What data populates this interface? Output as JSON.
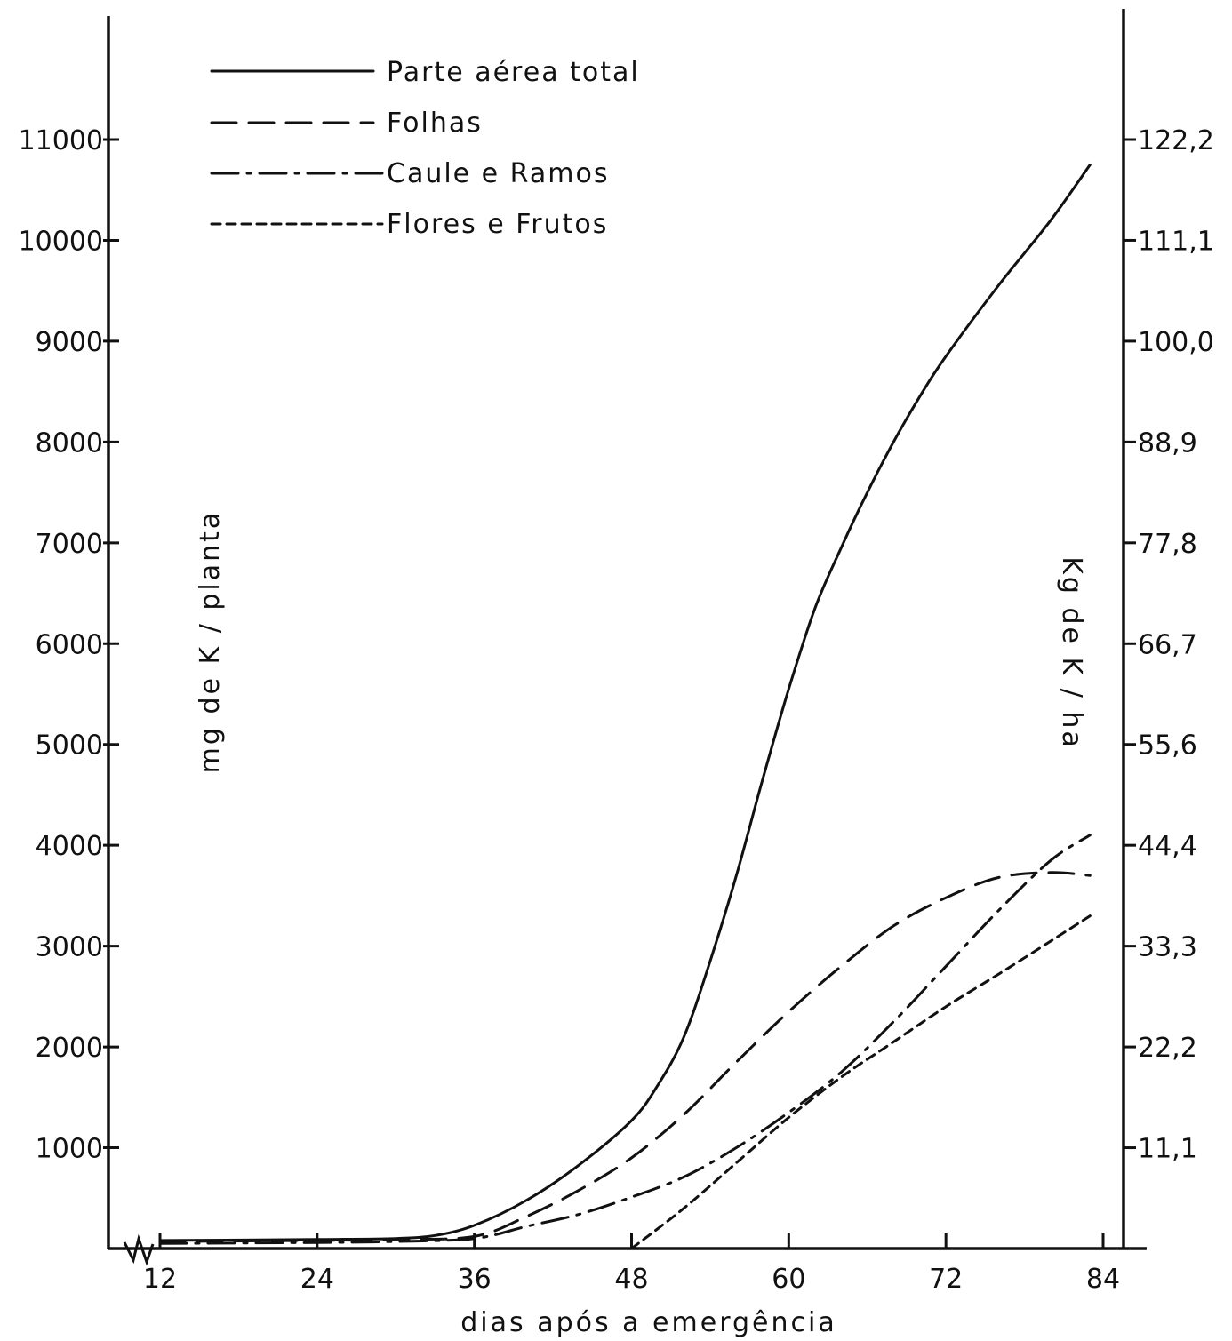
{
  "chart_data": {
    "type": "line",
    "xlabel": "dias após a emergência",
    "ylabel_left": "mg de K / planta",
    "ylabel_right": "Kg de K / ha",
    "x_ticks": [
      12,
      24,
      36,
      48,
      60,
      72,
      84
    ],
    "xlim": [
      12,
      84
    ],
    "ylim": [
      0,
      11000
    ],
    "y_ticks_left": [
      1000,
      2000,
      3000,
      4000,
      5000,
      6000,
      7000,
      8000,
      9000,
      10000,
      11000
    ],
    "y_tick_labels_left": [
      "1000",
      "2000",
      "3000",
      "4000",
      "5000",
      "6000",
      "7000",
      "8000",
      "9000",
      "10000",
      "11000"
    ],
    "y_tick_labels_right": [
      "11,1",
      "22,2",
      "33,3",
      "44,4",
      "55,6",
      "66,7",
      "77,8",
      "88,9",
      "100,0",
      "111,1",
      "122,2"
    ],
    "legend_position": "top-left",
    "grid": false,
    "series": [
      {
        "name": "Parte aérea total",
        "style": "solid",
        "x": [
          12,
          24,
          30,
          33,
          36,
          40,
          44,
          48,
          50,
          52,
          54,
          56,
          58,
          60,
          62,
          64,
          66,
          68,
          70,
          72,
          76,
          80,
          83
        ],
        "values": [
          80,
          90,
          100,
          130,
          230,
          480,
          830,
          1270,
          1620,
          2100,
          2850,
          3700,
          4650,
          5550,
          6350,
          6950,
          7500,
          8000,
          8450,
          8850,
          9550,
          10200,
          10750
        ]
      },
      {
        "name": "Folhas",
        "style": "dashed",
        "x": [
          12,
          24,
          30,
          36,
          40,
          44,
          48,
          52,
          56,
          60,
          64,
          68,
          72,
          76,
          80,
          83
        ],
        "values": [
          70,
          80,
          90,
          120,
          320,
          580,
          900,
          1330,
          1850,
          2350,
          2800,
          3200,
          3480,
          3680,
          3730,
          3700
        ]
      },
      {
        "name": "Caule e Ramos",
        "style": "dash-dot",
        "x": [
          12,
          24,
          30,
          36,
          40,
          44,
          48,
          52,
          56,
          60,
          64,
          68,
          72,
          76,
          80,
          83
        ],
        "values": [
          50,
          60,
          70,
          100,
          220,
          340,
          510,
          710,
          1000,
          1350,
          1750,
          2250,
          2800,
          3350,
          3850,
          4100
        ]
      },
      {
        "name": "Flores e Frutos",
        "style": "dotted",
        "x": [
          48,
          52,
          56,
          60,
          64,
          68,
          72,
          76,
          80,
          83
        ],
        "values": [
          0,
          400,
          850,
          1300,
          1700,
          2050,
          2400,
          2720,
          3050,
          3300
        ]
      }
    ]
  }
}
